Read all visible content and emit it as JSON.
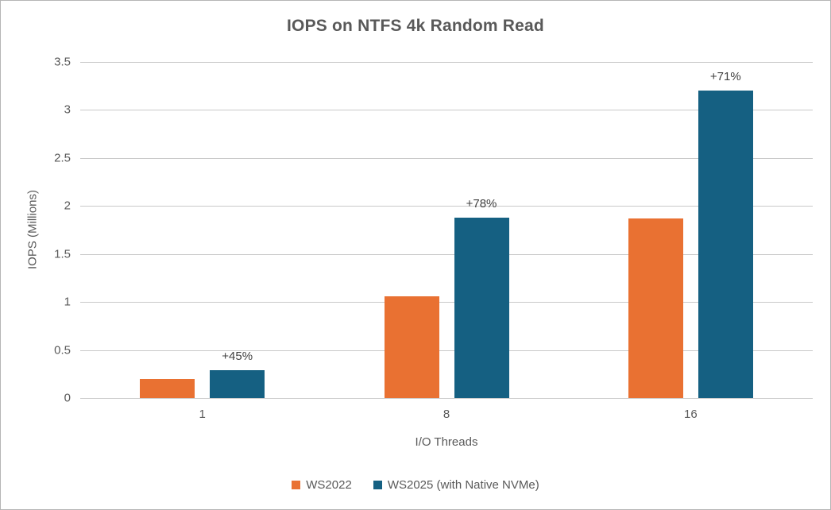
{
  "chart_data": {
    "type": "bar",
    "title": "IOPS on NTFS 4k Random Read",
    "xlabel": "I/O Threads",
    "ylabel": "IOPS (Millions)",
    "categories": [
      "1",
      "8",
      "16"
    ],
    "series": [
      {
        "name": "WS2022",
        "color": "#E97132",
        "values": [
          0.2,
          1.06,
          1.87
        ]
      },
      {
        "name": "WS2025 (with Native NVMe)",
        "color": "#156082",
        "values": [
          0.29,
          1.88,
          3.2
        ]
      }
    ],
    "bar_labels": {
      "series": "WS2025 (with Native NVMe)",
      "values": [
        "+45%",
        "+78%",
        "+71%"
      ]
    },
    "ylim": [
      0,
      3.5
    ],
    "yticks": [
      "0",
      "0.5",
      "1",
      "1.5",
      "2",
      "2.5",
      "3",
      "3.5"
    ],
    "grid": "horizontal",
    "legend_position": "bottom",
    "colors": {
      "title_text": "#595959",
      "axis_text": "#595959",
      "bar_label_text": "#404040",
      "gridline": "#C9C9C9",
      "frame_border": "#B5B5B5",
      "background": "#FFFFFF"
    }
  }
}
